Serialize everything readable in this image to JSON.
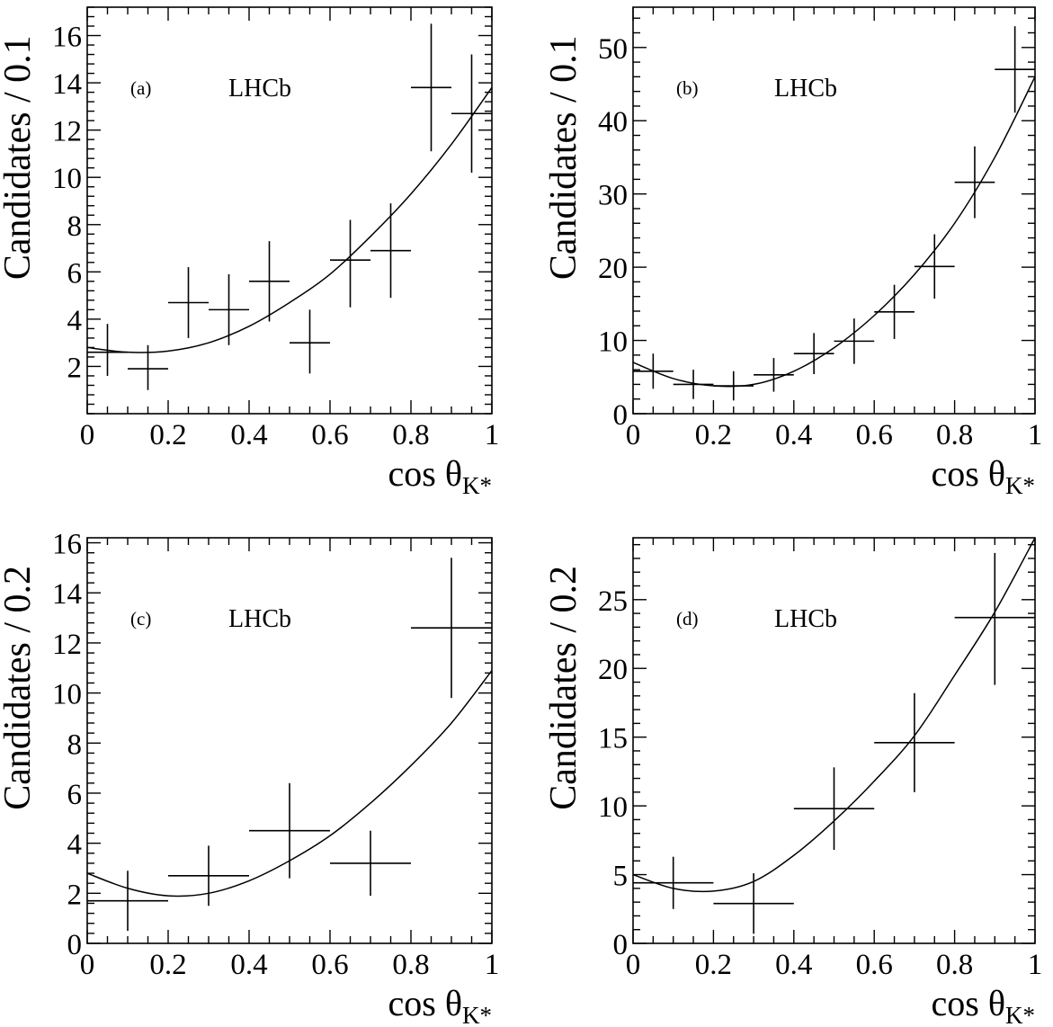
{
  "chart_data": [
    {
      "type": "scatter",
      "panel_label": "(a)",
      "annotation": "LHCb",
      "xlabel": "cos θ",
      "xlabel_sub": "K*",
      "ylabel": "Candidates / 0.1",
      "xlim": [
        0,
        1
      ],
      "ylim": [
        0,
        17.2
      ],
      "xticks": [
        0,
        0.2,
        0.4,
        0.6,
        0.8,
        1
      ],
      "xtick_labels": [
        "0",
        "0.2",
        "0.4",
        "0.6",
        "0.8",
        "1"
      ],
      "yticks": [
        2,
        4,
        6,
        8,
        10,
        12,
        14,
        16
      ],
      "ytick_labels": [
        "2",
        "4",
        "6",
        "8",
        "10",
        "12",
        "14",
        "16"
      ],
      "grid": false,
      "series": [
        {
          "kind": "data",
          "x": [
            0.05,
            0.15,
            0.25,
            0.35,
            0.45,
            0.55,
            0.65,
            0.75,
            0.85,
            0.95
          ],
          "y": [
            2.6,
            1.9,
            4.7,
            4.4,
            5.6,
            3.0,
            6.5,
            6.9,
            13.8,
            12.7
          ],
          "x_halfwidth": 0.05,
          "y_err_low": [
            1.0,
            0.9,
            1.5,
            1.5,
            1.7,
            1.3,
            2.0,
            2.0,
            2.7,
            2.5
          ],
          "y_err_high": [
            1.2,
            1.0,
            1.5,
            1.5,
            1.7,
            1.4,
            1.7,
            2.0,
            2.7,
            2.5
          ]
        },
        {
          "kind": "fit",
          "x": [
            0,
            0.1,
            0.2,
            0.3,
            0.4,
            0.5,
            0.6,
            0.7,
            0.8,
            0.9,
            1.0
          ],
          "y": [
            2.8,
            2.6,
            2.65,
            3.0,
            3.7,
            4.7,
            5.9,
            7.5,
            9.3,
            11.4,
            13.8
          ]
        }
      ]
    },
    {
      "type": "scatter",
      "panel_label": "(b)",
      "annotation": "LHCb",
      "xlabel": "cos θ",
      "xlabel_sub": "K*",
      "ylabel": "Candidates / 0.1",
      "xlim": [
        0,
        1
      ],
      "ylim": [
        0,
        55.5
      ],
      "xticks": [
        0,
        0.2,
        0.4,
        0.6,
        0.8,
        1
      ],
      "xtick_labels": [
        "0",
        "0.2",
        "0.4",
        "0.6",
        "0.8",
        "1"
      ],
      "yticks": [
        0,
        10,
        20,
        30,
        40,
        50
      ],
      "ytick_labels": [
        "0",
        "10",
        "20",
        "30",
        "40",
        "50"
      ],
      "grid": false,
      "series": [
        {
          "kind": "data",
          "x": [
            0.05,
            0.15,
            0.25,
            0.35,
            0.45,
            0.55,
            0.65,
            0.75,
            0.85,
            0.95
          ],
          "y": [
            5.8,
            4.0,
            3.8,
            5.3,
            8.2,
            9.9,
            13.9,
            20.1,
            31.6,
            47.0
          ],
          "x_halfwidth": 0.05,
          "y_err_low": [
            2.4,
            2.0,
            2.0,
            2.3,
            2.8,
            3.1,
            3.7,
            4.4,
            4.9,
            5.9
          ],
          "y_err_high": [
            2.4,
            2.0,
            2.0,
            2.3,
            2.8,
            3.1,
            3.7,
            4.4,
            4.9,
            5.9
          ]
        },
        {
          "kind": "fit",
          "x": [
            0,
            0.1,
            0.2,
            0.3,
            0.4,
            0.5,
            0.6,
            0.7,
            0.8,
            0.9,
            1.0
          ],
          "y": [
            7.0,
            4.8,
            3.8,
            4.0,
            5.8,
            9.0,
            13.4,
            19.0,
            26.0,
            35.0,
            46.0
          ]
        }
      ]
    },
    {
      "type": "scatter",
      "panel_label": "(c)",
      "annotation": "LHCb",
      "xlabel": "cos θ",
      "xlabel_sub": "K*",
      "ylabel": "Candidates / 0.2",
      "xlim": [
        0,
        1
      ],
      "ylim": [
        0,
        16.2
      ],
      "xticks": [
        0,
        0.2,
        0.4,
        0.6,
        0.8,
        1
      ],
      "xtick_labels": [
        "0",
        "0.2",
        "0.4",
        "0.6",
        "0.8",
        "1"
      ],
      "yticks": [
        0,
        2,
        4,
        6,
        8,
        10,
        12,
        14,
        16
      ],
      "ytick_labels": [
        "0",
        "2",
        "4",
        "6",
        "8",
        "10",
        "12",
        "14",
        "16"
      ],
      "grid": false,
      "series": [
        {
          "kind": "data",
          "x": [
            0.1,
            0.3,
            0.5,
            0.7,
            0.9
          ],
          "y": [
            1.7,
            2.7,
            4.5,
            3.2,
            12.6
          ],
          "x_halfwidth": 0.1,
          "y_err_low": [
            1.2,
            1.2,
            1.9,
            1.3,
            2.8
          ],
          "y_err_high": [
            1.2,
            1.2,
            1.9,
            1.3,
            2.8
          ]
        },
        {
          "kind": "fit",
          "x": [
            0,
            0.1,
            0.2,
            0.3,
            0.4,
            0.5,
            0.6,
            0.7,
            0.8,
            0.9,
            1.0
          ],
          "y": [
            2.8,
            2.2,
            1.9,
            2.0,
            2.5,
            3.3,
            4.3,
            5.6,
            7.1,
            8.8,
            10.9
          ]
        }
      ]
    },
    {
      "type": "scatter",
      "panel_label": "(d)",
      "annotation": "LHCb",
      "xlabel": "cos θ",
      "xlabel_sub": "K*",
      "ylabel": "Candidates / 0.2",
      "xlim": [
        0,
        1
      ],
      "ylim": [
        0,
        29.5
      ],
      "xticks": [
        0,
        0.2,
        0.4,
        0.6,
        0.8,
        1
      ],
      "xtick_labels": [
        "0",
        "0.2",
        "0.4",
        "0.6",
        "0.8",
        "1"
      ],
      "yticks": [
        0,
        5,
        10,
        15,
        20,
        25
      ],
      "ytick_labels": [
        "0",
        "5",
        "10",
        "15",
        "20",
        "25"
      ],
      "grid": false,
      "series": [
        {
          "kind": "data",
          "x": [
            0.1,
            0.3,
            0.5,
            0.7,
            0.9
          ],
          "y": [
            4.4,
            2.9,
            9.8,
            14.6,
            23.7
          ],
          "x_halfwidth": 0.1,
          "y_err_low": [
            1.9,
            2.2,
            3.0,
            3.6,
            4.9
          ],
          "y_err_high": [
            1.9,
            2.2,
            3.0,
            3.6,
            4.7
          ]
        },
        {
          "kind": "fit",
          "x": [
            0,
            0.1,
            0.2,
            0.3,
            0.4,
            0.5,
            0.6,
            0.7,
            0.8,
            0.9,
            1.0
          ],
          "y": [
            5.0,
            4.0,
            3.8,
            4.5,
            6.4,
            8.9,
            11.8,
            15.1,
            19.5,
            24.1,
            29.5
          ]
        }
      ]
    }
  ]
}
